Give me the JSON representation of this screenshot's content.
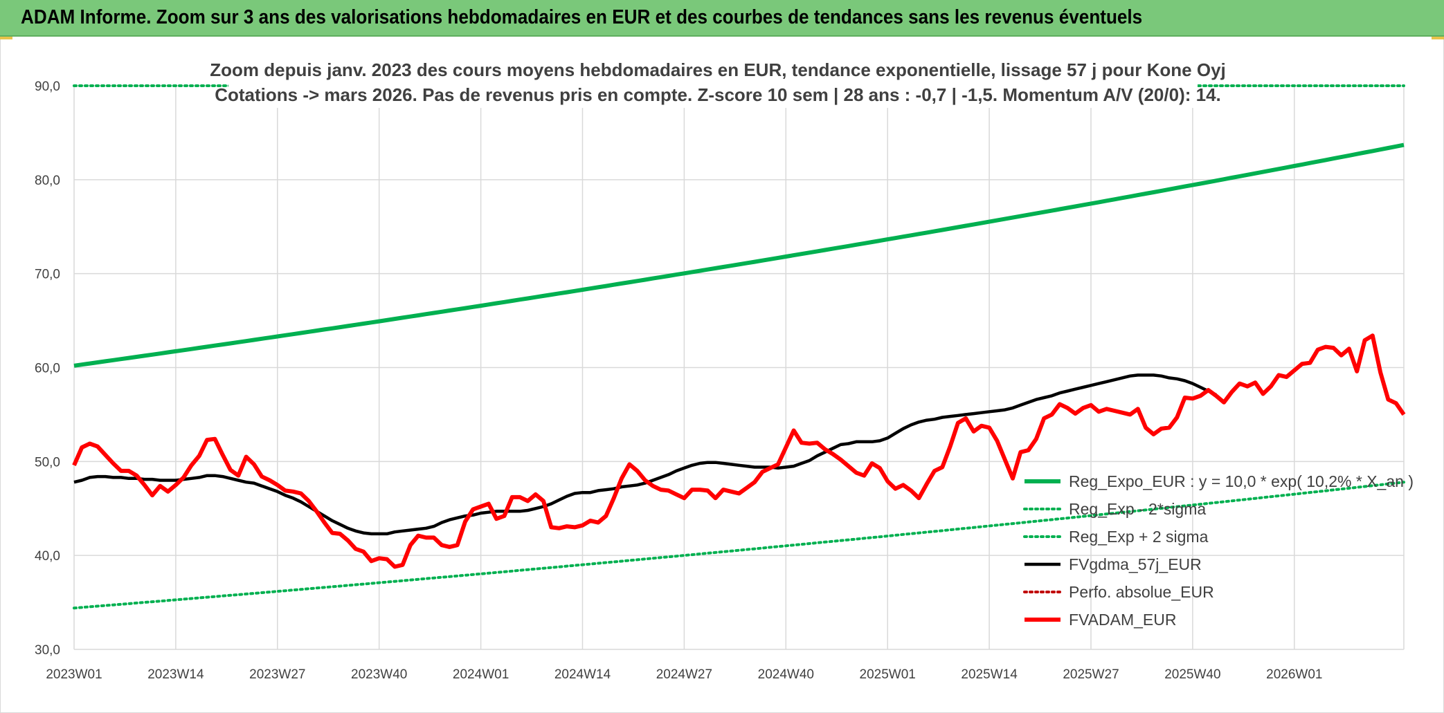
{
  "header": {
    "title": "ADAM Informe. Zoom sur 3 ans des valorisations hebdomadaires en EUR et des courbes de tendances sans les revenus éventuels"
  },
  "colors": {
    "header_bg": "#7ac87a",
    "trend": "#00b050",
    "price": "#ff0000",
    "smooth": "#000000",
    "perf": "#c00000",
    "grid": "#d9d9d9",
    "text": "#404040"
  },
  "chart_data": {
    "type": "line",
    "title": "Zoom depuis janv. 2023 des cours moyens hebdomadaires en EUR, tendance exponentielle, lissage 57 j pour Kone Oyj",
    "subtitle": "Cotations -> mars 2026. Pas de revenus pris en compte. Z-score 10 sem | 28 ans : -0,7 | -1,5. Momentum A/V (20/0): 14.",
    "ylim": [
      30,
      90
    ],
    "y_ticks": [
      "30,0",
      "40,0",
      "50,0",
      "60,0",
      "70,0",
      "80,0",
      "90,0"
    ],
    "x_ticks": [
      "2023W01",
      "2023W14",
      "2023W27",
      "2023W40",
      "2024W01",
      "2024W14",
      "2024W27",
      "2024W40",
      "2025W01",
      "2025W14",
      "2025W27",
      "2025W40",
      "2026W01"
    ],
    "grid": true,
    "legend_position": "bottom-right",
    "x_week_count": 171,
    "series": [
      {
        "name": "Reg_Expo_EUR : y = 10,0 * exp( 10,2% * X_an )",
        "style": "solid-thick",
        "color": "#00b050",
        "start": 60.2,
        "end": 83.7
      },
      {
        "name": "Reg_Exp - 2*sigma",
        "style": "dotted",
        "color": "#00b050",
        "start": 90.0,
        "end": 90.0
      },
      {
        "name": "Reg_Exp + 2 sigma",
        "style": "dotted",
        "color": "#00b050",
        "start": 34.4,
        "end": 47.8
      },
      {
        "name": "FVgdma_57j_EUR",
        "style": "solid",
        "color": "#000000",
        "values": [
          47.8,
          48.0,
          48.3,
          48.4,
          48.4,
          48.3,
          48.3,
          48.2,
          48.2,
          48.1,
          48.1,
          48.0,
          48.0,
          48.0,
          48.1,
          48.2,
          48.3,
          48.5,
          48.5,
          48.4,
          48.2,
          48.0,
          47.8,
          47.7,
          47.4,
          47.1,
          46.8,
          46.4,
          46.1,
          45.7,
          45.2,
          44.7,
          44.2,
          43.7,
          43.3,
          42.9,
          42.6,
          42.4,
          42.3,
          42.3,
          42.3,
          42.5,
          42.6,
          42.7,
          42.8,
          42.9,
          43.1,
          43.5,
          43.8,
          44.0,
          44.2,
          44.3,
          44.5,
          44.6,
          44.7,
          44.7,
          44.7,
          44.7,
          44.8,
          45.0,
          45.2,
          45.5,
          45.9,
          46.3,
          46.6,
          46.7,
          46.7,
          46.9,
          47.0,
          47.1,
          47.3,
          47.4,
          47.5,
          47.7,
          48.0,
          48.3,
          48.6,
          49.0,
          49.3,
          49.6,
          49.8,
          49.9,
          49.9,
          49.8,
          49.7,
          49.6,
          49.5,
          49.4,
          49.4,
          49.4,
          49.3,
          49.4,
          49.5,
          49.8,
          50.1,
          50.6,
          51.0,
          51.4,
          51.8,
          51.9,
          52.1,
          52.1,
          52.1,
          52.2,
          52.5,
          53.0,
          53.5,
          53.9,
          54.2,
          54.4,
          54.5,
          54.7,
          54.8,
          54.9,
          55.0,
          55.1,
          55.2,
          55.3,
          55.4,
          55.5,
          55.7,
          56.0,
          56.3,
          56.6,
          56.8,
          57.0,
          57.3,
          57.5,
          57.7,
          57.9,
          58.1,
          58.3,
          58.5,
          58.7,
          58.9,
          59.1,
          59.2,
          59.2,
          59.2,
          59.1,
          58.9,
          58.8,
          58.6,
          58.3,
          57.9,
          57.5,
          57.1
        ]
      },
      {
        "name": "Perfo. absolue_EUR",
        "style": "dotted",
        "color": "#c00000",
        "values": []
      },
      {
        "name": "FVADAM_EUR",
        "style": "solid-thick",
        "color": "#ff0000",
        "values": [
          49.6,
          51.5,
          51.9,
          51.6,
          50.7,
          49.8,
          49.0,
          49.0,
          48.5,
          47.5,
          46.4,
          47.4,
          46.8,
          47.5,
          48.3,
          49.6,
          50.6,
          52.3,
          52.4,
          50.7,
          49.1,
          48.5,
          50.5,
          49.7,
          48.4,
          48.0,
          47.5,
          46.9,
          46.8,
          46.6,
          45.8,
          44.7,
          43.5,
          42.4,
          42.3,
          41.6,
          40.7,
          40.4,
          39.4,
          39.7,
          39.6,
          38.8,
          39.0,
          41.1,
          42.1,
          41.9,
          41.9,
          41.1,
          40.9,
          41.1,
          43.6,
          44.9,
          45.2,
          45.5,
          43.9,
          44.2,
          46.2,
          46.2,
          45.8,
          46.5,
          45.8,
          43.0,
          42.9,
          43.1,
          43.0,
          43.2,
          43.7,
          43.5,
          44.2,
          46.1,
          48.2,
          49.7,
          49.0,
          48.0,
          47.4,
          47.0,
          46.9,
          46.5,
          46.1,
          47.0,
          47.0,
          46.9,
          46.1,
          47.0,
          46.8,
          46.6,
          47.2,
          47.8,
          48.9,
          49.3,
          49.7,
          51.5,
          53.3,
          52.0,
          51.9,
          52.0,
          51.3,
          50.8,
          50.2,
          49.5,
          48.8,
          48.5,
          49.8,
          49.3,
          47.9,
          47.1,
          47.5,
          46.9,
          46.1,
          47.6,
          49.0,
          49.4,
          51.6,
          54.1,
          54.6,
          53.2,
          53.8,
          53.6,
          52.2,
          50.2,
          48.2,
          51.0,
          51.2,
          52.4,
          54.6,
          55.0,
          56.1,
          55.7,
          55.1,
          55.7,
          56.0,
          55.3,
          55.6,
          55.4,
          55.2,
          55.0,
          55.6,
          53.6,
          52.9,
          53.5,
          53.6,
          54.7,
          56.8,
          56.7,
          57.0,
          57.6,
          57.0,
          56.3,
          57.4,
          58.3,
          58.0,
          58.4,
          57.2,
          58.0,
          59.2,
          59.0,
          59.7,
          60.4,
          60.5,
          61.9,
          62.2,
          62.1,
          61.3,
          62.0,
          59.6,
          62.9,
          63.4,
          59.5,
          56.6,
          56.2,
          55.0
        ]
      }
    ]
  }
}
